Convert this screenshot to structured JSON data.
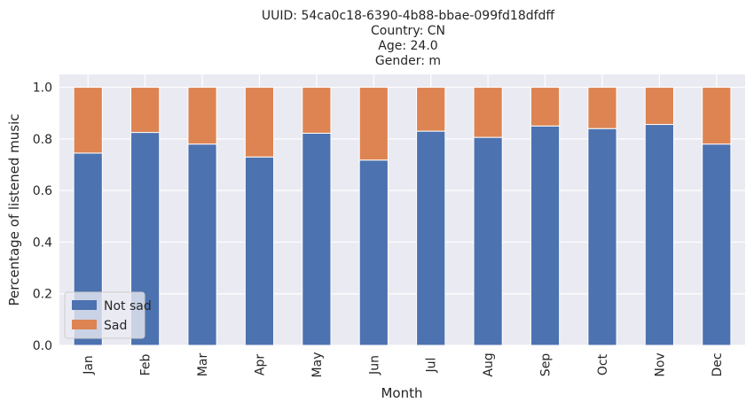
{
  "chart_data": {
    "type": "bar",
    "stacked": true,
    "title_lines": [
      "UUID: 54ca0c18-6390-4b88-bbae-099fd18dfdff",
      "Country: CN",
      "Age: 24.0",
      "Gender: m"
    ],
    "xlabel": "Month",
    "ylabel": "Percentage of listened music",
    "categories": [
      "Jan",
      "Feb",
      "Mar",
      "Apr",
      "May",
      "Jun",
      "Jul",
      "Aug",
      "Sep",
      "Oct",
      "Nov",
      "Dec"
    ],
    "yticks": [
      "0.0",
      "0.2",
      "0.4",
      "0.6",
      "0.8",
      "1.0"
    ],
    "ylim": [
      0,
      1.05
    ],
    "series": [
      {
        "name": "Not sad",
        "color": "#4c72b0",
        "values": [
          0.745,
          0.825,
          0.78,
          0.73,
          0.822,
          0.718,
          0.83,
          0.806,
          0.85,
          0.84,
          0.856,
          0.78
        ]
      },
      {
        "name": "Sad",
        "color": "#dd8452",
        "values": [
          0.255,
          0.175,
          0.22,
          0.27,
          0.178,
          0.282,
          0.17,
          0.194,
          0.15,
          0.16,
          0.144,
          0.22
        ]
      }
    ],
    "grid": true,
    "legend_position": "lower-left",
    "background": "#eaeaf2"
  }
}
